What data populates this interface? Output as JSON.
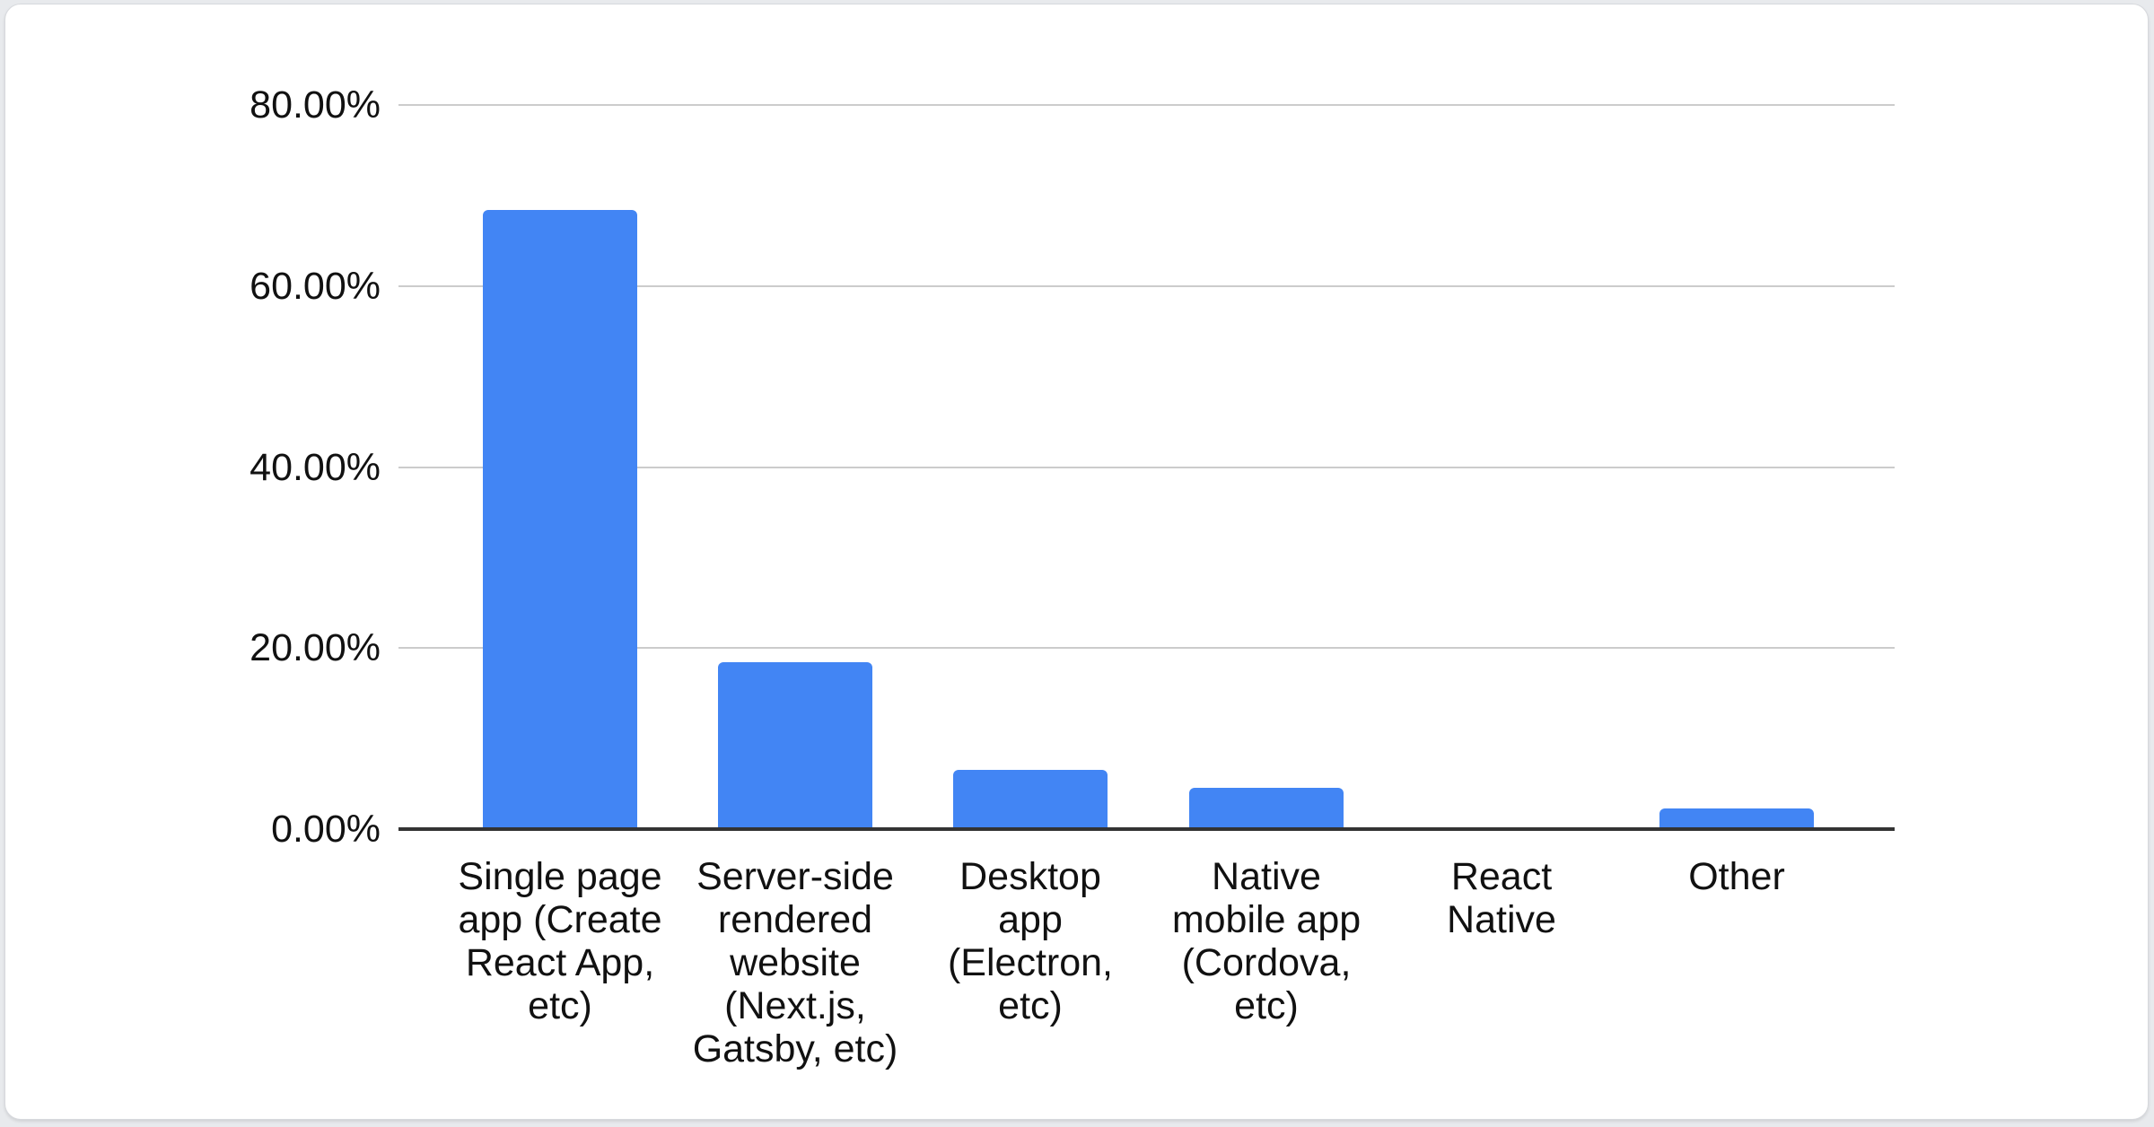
{
  "page": {
    "background_color": "#e8eaed",
    "card_background_color": "#ffffff",
    "card_border_color": "#d7d9dd"
  },
  "chart_data": {
    "type": "bar",
    "categories": [
      "Single page app (Create React App, etc)",
      "Server-side rendered website (Next.js, Gatsby, etc)",
      "Desktop app (Electron, etc)",
      "Native mobile app (Cordova, etc)",
      "React Native",
      "Other"
    ],
    "wrapped_categories": [
      "Single page\napp (Create\nReact App,\netc)",
      "Server-side\nrendered\nwebsite\n(Next.js,\nGatsby, etc)",
      "Desktop\napp\n(Electron,\netc)",
      "Native\nmobile app\n(Cordova,\netc)",
      "React\nNative",
      "Other"
    ],
    "values": [
      68.4,
      18.4,
      6.5,
      4.6,
      0,
      2.3
    ],
    "unit": "%",
    "bar_color": "#4285f4",
    "yticks": [
      {
        "value": 80,
        "label": "80.00%"
      },
      {
        "value": 60,
        "label": "60.00%"
      },
      {
        "value": 40,
        "label": "40.00%"
      },
      {
        "value": 20,
        "label": "20.00%"
      },
      {
        "value": 0,
        "label": "0.00%"
      }
    ],
    "ylim": [
      0,
      80
    ],
    "grid": true,
    "legend": "none",
    "xlabel": "",
    "ylabel": "",
    "gridline_color": "#cccccc",
    "axis_line_color": "#333333",
    "text_color": "#111111"
  }
}
